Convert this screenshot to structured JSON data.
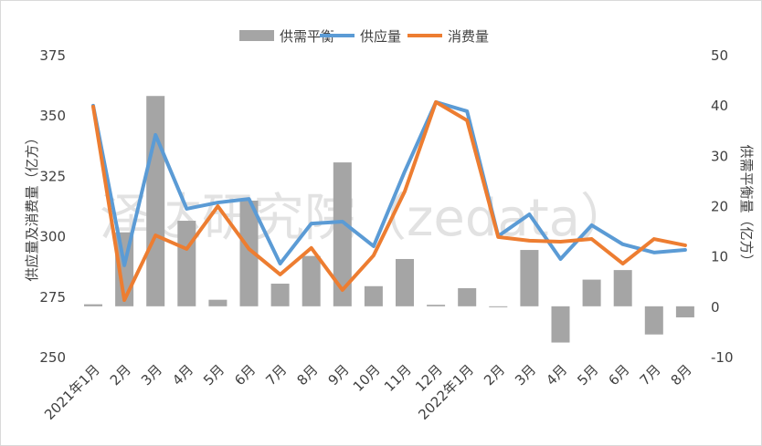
{
  "chart_data": {
    "type": "bar+line",
    "watermark": "泽达研究院（zedata）",
    "categories": [
      "2021年1月",
      "2月",
      "3月",
      "4月",
      "5月",
      "6月",
      "7月",
      "8月",
      "9月",
      "10月",
      "11月",
      "12月",
      "2022年1月",
      "2月",
      "3月",
      "4月",
      "5月",
      "6月",
      "7月",
      "8月"
    ],
    "ylabel": "供应量及消费量（亿方）",
    "y2label": "供需平衡量（亿方）",
    "ylim": [
      250,
      375
    ],
    "yticks": [
      250,
      275,
      300,
      325,
      350,
      375
    ],
    "y2lim": [
      -10,
      50
    ],
    "y2ticks": [
      -10,
      0,
      10,
      20,
      30,
      40,
      50
    ],
    "grid": false,
    "legend_position": "top",
    "series": [
      {
        "name": "供需平衡",
        "type": "bar",
        "axis": "right",
        "color": "#a5a5a5",
        "values": [
          0.4,
          14.7,
          41.8,
          17,
          1.3,
          21,
          4.5,
          10,
          28.6,
          4,
          9.4,
          0.3,
          3.6,
          0,
          11.2,
          -7.2,
          5.3,
          7.2,
          -5.6,
          -2.2
        ]
      },
      {
        "name": "供应量",
        "type": "line",
        "axis": "left",
        "color": "#5b9bd5",
        "values": [
          353.9,
          287.8,
          341.8,
          311.2,
          313.8,
          315.3,
          288.5,
          305.1,
          305.9,
          295.7,
          326.7,
          355.4,
          351.6,
          299.9,
          308.9,
          290.4,
          304.4,
          296.5,
          293.1,
          294.2
        ]
      },
      {
        "name": "消费量",
        "type": "line",
        "axis": "left",
        "color": "#ed7d31",
        "values": [
          353.5,
          273.4,
          300.2,
          294.6,
          312.3,
          294.6,
          284,
          295,
          277.6,
          291.9,
          318.4,
          355.4,
          347.8,
          299.5,
          298,
          297.6,
          298.7,
          288.5,
          298.7,
          296.1
        ]
      }
    ]
  }
}
